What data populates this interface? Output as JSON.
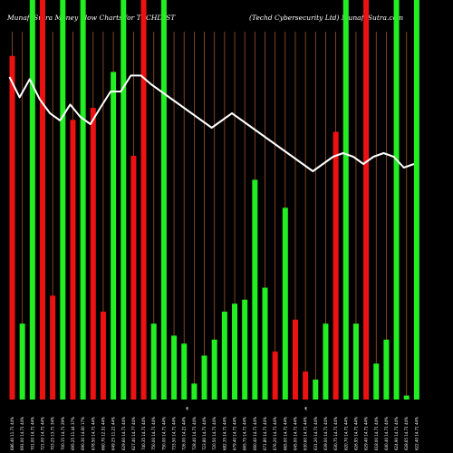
{
  "header": {
    "left_title": "MunafaSutra Money Flow  Charts for TECHD_ST",
    "right_title": "(Techd Cybersecurity Ltd) MunafaSutra.com"
  },
  "colors": {
    "background": "#000000",
    "up": "#22ee22",
    "down": "#ee1111",
    "grid": "#a0522d",
    "price_line": "#ffffff"
  },
  "chart_data": {
    "type": "bar",
    "title": "MunafaSutra Money Flow  Charts for TECHD_ST",
    "subtitle": "(Techd Cybersecurity Ltd) MunafaSutra.com",
    "grid": true,
    "mid_markers": [
      "₹",
      "₹"
    ],
    "ylim": [
      0,
      100
    ],
    "categories": [
      "686.40 11.71 44%",
      "691.00 14.71 44%",
      "701.00 14.71 44%",
      "721.00 14.71 44%",
      "703.25 13.71 34%",
      "700.15 14.71 29%",
      "695.25 11.44 37%",
      "690.30 14.00 17%",
      "678.50 14.71 44%",
      "660.70 12.51 44%",
      "649.25 11.21 44%",
      "629.60 14.71 44%",
      "627.40 14.77 44%",
      "740.35 14.71 44%",
      "750.00 14.71 44%",
      "750.00 14.71 44%",
      "733.50 14.71 44%",
      "726.00 14.21 44%",
      "728.40 14.71 44%",
      "723.80 14.71 44%",
      "720.50 14.71 44%",
      "682.35 14.71 44%",
      "679.40 14.71 44%",
      "665.75 14.71 44%",
      "660.40 14.71 44%",
      "671.80 14.71 44%",
      "676.20 14.71 44%",
      "665.00 14.71 44%",
      "645.00 14.71 44%",
      "630.60 14.71 44%",
      "631.20 14.71 44%",
      "639.00 14.71 44%",
      "630.75 14.71 44%",
      "620.70 14.71 44%",
      "626.95 14.71 44%",
      "629.40 14.71 44%",
      "618.00 14.71 44%",
      "640.40 14.71 44%",
      "624.90 14.71 44%",
      "628.65 14.71 44%",
      "622.40 14.71 44%"
    ],
    "series": [
      {
        "values": [
          86,
          19,
          100,
          100,
          26,
          100,
          70,
          100,
          73,
          22,
          82,
          100,
          61,
          100,
          19,
          100,
          16,
          14,
          4,
          11,
          15,
          22,
          24,
          25,
          55,
          28,
          12,
          48,
          20,
          7,
          5,
          19,
          67,
          100,
          19,
          100,
          9,
          15,
          100,
          1,
          100
        ],
        "direction": [
          "down",
          "up",
          "up",
          "down",
          "down",
          "up",
          "down",
          "up",
          "down",
          "down",
          "up",
          "up",
          "down",
          "down",
          "up",
          "up",
          "up",
          "up",
          "up",
          "up",
          "up",
          "up",
          "up",
          "up",
          "up",
          "up",
          "down",
          "up",
          "down",
          "down",
          "up",
          "up",
          "down",
          "up",
          "up",
          "down",
          "up",
          "up",
          "up",
          "up",
          "up"
        ]
      },
      {
        "values": [
          750,
          722,
          747,
          719,
          700,
          690,
          712,
          695,
          685,
          708,
          730,
          730,
          752,
          752,
          740,
          730,
          720,
          710,
          700,
          690,
          680,
          690,
          700,
          690,
          680,
          670,
          660,
          650,
          640,
          630,
          620,
          630,
          640,
          645,
          640,
          630,
          640,
          645,
          640,
          625,
          630
        ]
      }
    ]
  }
}
